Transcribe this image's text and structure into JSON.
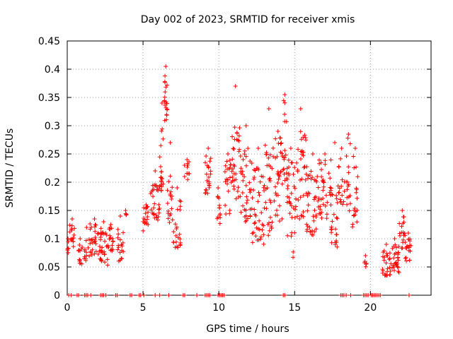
{
  "chart_data": {
    "type": "scatter",
    "title": "Day 002 of 2023, SRMTID for receiver xmis",
    "xlabel": "GPS time / hours",
    "ylabel": "SRMTID / TECUs",
    "xlim": [
      0,
      24
    ],
    "ylim": [
      0,
      0.45
    ],
    "xticks": [
      0,
      5,
      10,
      15,
      20
    ],
    "xtick_labels": [
      "0",
      "5",
      "10",
      "15",
      "20"
    ],
    "yticks": [
      0,
      0.05,
      0.1,
      0.15,
      0.2,
      0.25,
      0.3,
      0.35,
      0.4,
      0.45
    ],
    "ytick_labels": [
      "0",
      "0.05",
      "0.1",
      "0.15",
      "0.2",
      "0.25",
      "0.3",
      "0.35",
      "0.4",
      "0.45"
    ],
    "grid": true,
    "marker": "+",
    "color": "#ff0000",
    "segments": [
      {
        "x_start": 0.0,
        "x_end": 0.1,
        "y_low": 0.07,
        "y_high": 0.1,
        "y_peak": 0.1,
        "n": 5
      },
      {
        "x_start": 0.15,
        "x_end": 0.5,
        "y_low": 0.08,
        "y_high": 0.13,
        "y_peak": 0.135,
        "n": 14
      },
      {
        "x_start": 0.7,
        "x_end": 1.0,
        "y_low": 0.05,
        "y_high": 0.09,
        "y_peak": 0.1,
        "n": 12
      },
      {
        "x_start": 1.1,
        "x_end": 1.45,
        "y_low": 0.06,
        "y_high": 0.1,
        "y_peak": 0.12,
        "n": 12
      },
      {
        "x_start": 1.5,
        "x_end": 2.1,
        "y_low": 0.07,
        "y_high": 0.13,
        "y_peak": 0.135,
        "n": 26
      },
      {
        "x_start": 2.1,
        "x_end": 2.7,
        "y_low": 0.05,
        "y_high": 0.12,
        "y_peak": 0.13,
        "n": 30
      },
      {
        "x_start": 2.7,
        "x_end": 3.05,
        "y_low": 0.07,
        "y_high": 0.12,
        "y_peak": 0.125,
        "n": 16
      },
      {
        "x_start": 3.3,
        "x_end": 3.7,
        "y_low": 0.06,
        "y_high": 0.12,
        "y_peak": 0.14,
        "n": 18
      },
      {
        "x_start": 3.8,
        "x_end": 3.9,
        "y_low": 0.14,
        "y_high": 0.15,
        "y_peak": 0.15,
        "n": 3
      },
      {
        "x_start": 5.0,
        "x_end": 5.4,
        "y_low": 0.11,
        "y_high": 0.16,
        "y_peak": 0.16,
        "n": 18
      },
      {
        "x_start": 5.5,
        "x_end": 6.1,
        "y_low": 0.13,
        "y_high": 0.2,
        "y_peak": 0.22,
        "n": 28
      },
      {
        "x_start": 6.1,
        "x_end": 6.4,
        "y_low": 0.18,
        "y_high": 0.3,
        "y_peak": 0.34,
        "n": 20
      },
      {
        "x_start": 6.4,
        "x_end": 6.6,
        "y_low": 0.3,
        "y_high": 0.4,
        "y_peak": 0.405,
        "n": 20
      },
      {
        "x_start": 6.6,
        "x_end": 7.0,
        "y_low": 0.12,
        "y_high": 0.22,
        "y_peak": 0.27,
        "n": 18
      },
      {
        "x_start": 7.0,
        "x_end": 7.5,
        "y_low": 0.08,
        "y_high": 0.17,
        "y_peak": 0.19,
        "n": 22
      },
      {
        "x_start": 7.7,
        "x_end": 8.1,
        "y_low": 0.2,
        "y_high": 0.24,
        "y_peak": 0.24,
        "n": 10
      },
      {
        "x_start": 9.1,
        "x_end": 9.5,
        "y_low": 0.18,
        "y_high": 0.25,
        "y_peak": 0.26,
        "n": 22
      },
      {
        "x_start": 9.8,
        "x_end": 10.1,
        "y_low": 0.12,
        "y_high": 0.18,
        "y_peak": 0.19,
        "n": 12
      },
      {
        "x_start": 10.4,
        "x_end": 10.8,
        "y_low": 0.14,
        "y_high": 0.24,
        "y_peak": 0.25,
        "n": 20
      },
      {
        "x_start": 10.8,
        "x_end": 11.4,
        "y_low": 0.17,
        "y_high": 0.3,
        "y_peak": 0.37,
        "n": 32
      },
      {
        "x_start": 11.4,
        "x_end": 12.2,
        "y_low": 0.13,
        "y_high": 0.26,
        "y_peak": 0.3,
        "n": 40
      },
      {
        "x_start": 12.2,
        "x_end": 13.0,
        "y_low": 0.09,
        "y_high": 0.23,
        "y_peak": 0.26,
        "n": 40
      },
      {
        "x_start": 13.0,
        "x_end": 13.6,
        "y_low": 0.1,
        "y_high": 0.27,
        "y_peak": 0.33,
        "n": 32
      },
      {
        "x_start": 13.6,
        "x_end": 14.2,
        "y_low": 0.13,
        "y_high": 0.28,
        "y_peak": 0.29,
        "n": 32
      },
      {
        "x_start": 14.2,
        "x_end": 14.5,
        "y_low": 0.2,
        "y_high": 0.35,
        "y_peak": 0.355,
        "n": 16
      },
      {
        "x_start": 14.5,
        "x_end": 15.0,
        "y_low": 0.06,
        "y_high": 0.24,
        "y_peak": 0.26,
        "n": 30
      },
      {
        "x_start": 15.0,
        "x_end": 15.8,
        "y_low": 0.12,
        "y_high": 0.29,
        "y_peak": 0.33,
        "n": 40
      },
      {
        "x_start": 15.8,
        "x_end": 16.6,
        "y_low": 0.1,
        "y_high": 0.22,
        "y_peak": 0.25,
        "n": 38
      },
      {
        "x_start": 16.6,
        "x_end": 17.4,
        "y_low": 0.13,
        "y_high": 0.24,
        "y_peak": 0.25,
        "n": 36
      },
      {
        "x_start": 17.4,
        "x_end": 17.9,
        "y_low": 0.08,
        "y_high": 0.2,
        "y_peak": 0.27,
        "n": 24
      },
      {
        "x_start": 17.9,
        "x_end": 18.3,
        "y_low": 0.15,
        "y_high": 0.25,
        "y_peak": 0.26,
        "n": 16
      },
      {
        "x_start": 18.4,
        "x_end": 18.7,
        "y_low": 0.13,
        "y_high": 0.28,
        "y_peak": 0.285,
        "n": 16
      },
      {
        "x_start": 18.8,
        "x_end": 19.2,
        "y_low": 0.12,
        "y_high": 0.25,
        "y_peak": 0.26,
        "n": 18
      },
      {
        "x_start": 19.6,
        "x_end": 19.75,
        "y_low": 0.05,
        "y_high": 0.07,
        "y_peak": 0.07,
        "n": 5
      },
      {
        "x_start": 20.8,
        "x_end": 21.3,
        "y_low": 0.03,
        "y_high": 0.08,
        "y_peak": 0.09,
        "n": 26
      },
      {
        "x_start": 21.3,
        "x_end": 21.9,
        "y_low": 0.04,
        "y_high": 0.09,
        "y_peak": 0.1,
        "n": 30
      },
      {
        "x_start": 21.9,
        "x_end": 22.3,
        "y_low": 0.08,
        "y_high": 0.14,
        "y_peak": 0.15,
        "n": 18
      },
      {
        "x_start": 22.3,
        "x_end": 22.7,
        "y_low": 0.06,
        "y_high": 0.1,
        "y_peak": 0.11,
        "n": 18
      }
    ],
    "zero_points_x": [
      0.1,
      0.25,
      0.65,
      0.75,
      1.15,
      1.25,
      1.35,
      1.55,
      2.2,
      2.3,
      2.4,
      2.55,
      3.2,
      3.3,
      4.15,
      4.25,
      4.75,
      4.85,
      5.05,
      5.8,
      6.1,
      6.7,
      7.65,
      7.75,
      8.55,
      9.1,
      9.2,
      9.3,
      9.4,
      9.95,
      10.05,
      10.15,
      10.25,
      10.35,
      14.25,
      14.35,
      18.05,
      18.15,
      18.25,
      18.4,
      18.7,
      19.55,
      19.65,
      19.75,
      19.85,
      20.05,
      20.15,
      20.25,
      20.35,
      20.45,
      20.55,
      20.65,
      22.55
    ]
  }
}
